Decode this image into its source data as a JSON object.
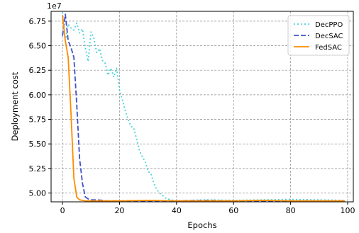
{
  "chart_data": {
    "type": "line",
    "title": "",
    "xlabel": "Epochs",
    "ylabel": "Deployment cost",
    "y_offset_label": "1e7",
    "xlim": [
      -4,
      102
    ],
    "ylim": [
      4.91,
      6.85
    ],
    "y_unit_multiplier": 10000000,
    "grid": true,
    "legend_placement": "top-right",
    "x_ticks": [
      0,
      20,
      40,
      60,
      80,
      100
    ],
    "x_tick_labels": [
      "0",
      "20",
      "40",
      "60",
      "80",
      "100"
    ],
    "y_ticks": [
      5.0,
      5.25,
      5.5,
      5.75,
      6.0,
      6.25,
      6.5,
      6.75
    ],
    "y_tick_labels": [
      "5.00",
      "5.25",
      "5.50",
      "5.75",
      "6.00",
      "6.25",
      "6.50",
      "6.75"
    ],
    "series": [
      {
        "name": "DecPPO",
        "color": "#4dd2dc",
        "style": "dotted",
        "points": [
          [
            0,
            6.84
          ],
          [
            1,
            6.55
          ],
          [
            2,
            6.72
          ],
          [
            3,
            6.68
          ],
          [
            4,
            6.66
          ],
          [
            5,
            6.73
          ],
          [
            6,
            6.63
          ],
          [
            7,
            6.67
          ],
          [
            8,
            6.48
          ],
          [
            9,
            6.34
          ],
          [
            10,
            6.64
          ],
          [
            11,
            6.58
          ],
          [
            12,
            6.43
          ],
          [
            13,
            6.47
          ],
          [
            14,
            6.35
          ],
          [
            15,
            6.32
          ],
          [
            16,
            6.2
          ],
          [
            17,
            6.27
          ],
          [
            18,
            6.18
          ],
          [
            19,
            6.27
          ],
          [
            20,
            6.05
          ],
          [
            21,
            5.95
          ],
          [
            22,
            5.84
          ],
          [
            23,
            5.75
          ],
          [
            24,
            5.68
          ],
          [
            25,
            5.66
          ],
          [
            26,
            5.55
          ],
          [
            27,
            5.43
          ],
          [
            28,
            5.37
          ],
          [
            29,
            5.32
          ],
          [
            30,
            5.22
          ],
          [
            31,
            5.2
          ],
          [
            32,
            5.1
          ],
          [
            33,
            5.04
          ],
          [
            34,
            5.0
          ],
          [
            35,
            4.98
          ],
          [
            36,
            4.95
          ],
          [
            38,
            4.93
          ],
          [
            40,
            4.92
          ],
          [
            45,
            4.925
          ],
          [
            50,
            4.93
          ],
          [
            60,
            4.925
          ],
          [
            70,
            4.93
          ],
          [
            80,
            4.935
          ],
          [
            90,
            4.93
          ],
          [
            99,
            4.925
          ]
        ]
      },
      {
        "name": "DecSAC",
        "color": "#3f51c8",
        "style": "dashed",
        "points": [
          [
            0,
            6.6
          ],
          [
            1,
            6.82
          ],
          [
            2,
            6.55
          ],
          [
            3,
            6.48
          ],
          [
            4,
            6.38
          ],
          [
            5,
            5.9
          ],
          [
            6,
            5.35
          ],
          [
            7,
            5.1
          ],
          [
            8,
            4.96
          ],
          [
            9,
            4.94
          ],
          [
            10,
            4.93
          ],
          [
            12,
            4.93
          ],
          [
            14,
            4.925
          ],
          [
            16,
            4.92
          ],
          [
            20,
            4.92
          ],
          [
            30,
            4.92
          ],
          [
            40,
            4.92
          ],
          [
            50,
            4.925
          ],
          [
            60,
            4.92
          ],
          [
            70,
            4.92
          ],
          [
            80,
            4.92
          ],
          [
            90,
            4.92
          ],
          [
            99,
            4.92
          ]
        ]
      },
      {
        "name": "FedSAC",
        "color": "#ff8c00",
        "style": "solid",
        "points": [
          [
            0,
            6.81
          ],
          [
            1,
            6.55
          ],
          [
            2,
            6.38
          ],
          [
            3,
            5.8
          ],
          [
            4,
            5.15
          ],
          [
            5,
            4.96
          ],
          [
            6,
            4.93
          ],
          [
            7,
            4.925
          ],
          [
            8,
            4.92
          ],
          [
            10,
            4.92
          ],
          [
            15,
            4.92
          ],
          [
            20,
            4.92
          ],
          [
            30,
            4.925
          ],
          [
            40,
            4.92
          ],
          [
            50,
            4.92
          ],
          [
            60,
            4.92
          ],
          [
            70,
            4.925
          ],
          [
            80,
            4.92
          ],
          [
            90,
            4.92
          ],
          [
            99,
            4.92
          ]
        ]
      }
    ]
  }
}
